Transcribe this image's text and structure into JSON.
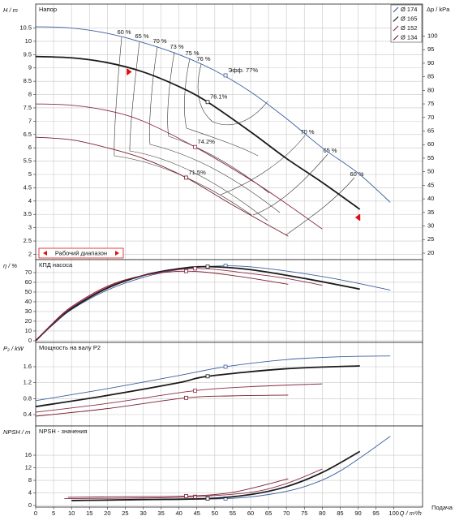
{
  "x_axis": {
    "label": "Q / m³/h",
    "caption": "Подача",
    "xlim": [
      0,
      108
    ],
    "xticks": [
      0,
      5,
      10,
      15,
      20,
      25,
      30,
      35,
      40,
      45,
      50,
      55,
      60,
      65,
      70,
      75,
      80,
      85,
      90,
      95,
      100
    ]
  },
  "chart_data": [
    {
      "type": "line",
      "title": "Напор",
      "ylabel": "H / m",
      "y2label": "Δp / kPa",
      "grid": true,
      "legend": "top-right",
      "ylim": [
        1.8,
        11.4
      ],
      "yticks": [
        2,
        2.5,
        3,
        3.5,
        4,
        4.5,
        5,
        5.5,
        6,
        6.5,
        7,
        7.5,
        8,
        8.5,
        9,
        9.5,
        10,
        10.5
      ],
      "y2lim": [
        17.6,
        111.8
      ],
      "y2ticks": [
        20,
        25,
        30,
        35,
        40,
        45,
        50,
        55,
        60,
        65,
        70,
        75,
        80,
        85,
        90,
        95,
        100
      ],
      "annotations": [
        "60 %",
        "65 %",
        "70 %",
        "73 %",
        "75 %",
        "76 %",
        "70 %",
        "65 %",
        "60 %"
      ],
      "operating_range_label": "Рабочий диапазон",
      "operating_range": [
        25.5,
        90.5
      ],
      "series": [
        {
          "name": "Ø 174",
          "color": "#3b5fa0",
          "x": [
            0,
            10,
            20,
            30,
            40,
            50,
            60,
            70,
            80,
            90,
            99
          ],
          "values": [
            10.55,
            10.5,
            10.3,
            9.95,
            9.5,
            8.9,
            8.1,
            7.1,
            6.0,
            5.05,
            3.95
          ],
          "point_x": 53,
          "point_y": 8.72,
          "point_label": "Эфф. 77%"
        },
        {
          "name": "Ø 165",
          "color": "#1a1a1a",
          "x": [
            0,
            10,
            20,
            30,
            40,
            48,
            60,
            70,
            80,
            90.5
          ],
          "values": [
            9.43,
            9.38,
            9.2,
            8.85,
            8.3,
            7.72,
            6.6,
            5.6,
            4.7,
            3.69
          ],
          "point_x": 48,
          "point_y": 7.72,
          "point_label": "76.1%"
        },
        {
          "name": "Ø 152",
          "color": "#8c2a4a",
          "x": [
            0,
            10,
            20,
            30,
            44.5,
            60,
            70,
            80
          ],
          "values": [
            7.65,
            7.6,
            7.4,
            7.0,
            6.03,
            4.8,
            3.9,
            2.95
          ],
          "point_x": 44.5,
          "point_y": 6.03,
          "point_label": "74.2%"
        },
        {
          "name": "Ø 134",
          "color": "#7a1f2e",
          "x": [
            0,
            10,
            20,
            30,
            42,
            55,
            70.5
          ],
          "values": [
            6.4,
            6.3,
            6.0,
            5.6,
            4.88,
            3.85,
            2.68
          ],
          "point_x": 42,
          "point_y": 4.88,
          "point_label": "71.5%"
        }
      ]
    },
    {
      "type": "line",
      "title": "КПД насоса",
      "ylabel": "η / %",
      "grid": true,
      "ylim": [
        -1.7,
        83.3
      ],
      "yticks": [
        0,
        10,
        20,
        30,
        40,
        50,
        60,
        70
      ],
      "series": [
        {
          "color": "#3b5fa0",
          "x": [
            0,
            5,
            10,
            20,
            30,
            40,
            53,
            65,
            80,
            90,
            99
          ],
          "values": [
            0,
            17,
            32,
            52,
            65,
            73,
            77,
            74,
            66,
            59,
            52
          ],
          "point_x": 53,
          "point_y": 77
        },
        {
          "color": "#1a1a1a",
          "x": [
            0,
            5,
            10,
            20,
            30,
            40,
            48,
            60,
            75,
            90.5
          ],
          "values": [
            0,
            18,
            33,
            54,
            67,
            74,
            76.1,
            73,
            64,
            53
          ],
          "point_x": 48,
          "point_y": 76.1
        },
        {
          "color": "#8c2a4a",
          "x": [
            0,
            5,
            10,
            20,
            30,
            44.5,
            60,
            70,
            80
          ],
          "values": [
            0,
            18,
            34,
            55,
            67,
            74.2,
            69,
            64,
            57
          ],
          "point_x": 44.5,
          "point_y": 74.2
        },
        {
          "color": "#7a1f2e",
          "x": [
            0,
            5,
            10,
            20,
            30,
            42,
            55,
            70.5
          ],
          "values": [
            0,
            19,
            35,
            56,
            67,
            71.5,
            67,
            58
          ],
          "point_x": 42,
          "point_y": 71.5
        }
      ]
    },
    {
      "type": "line",
      "title": "Мощность на валу P2",
      "ylabel": "P₂ / kW",
      "grid": true,
      "ylim": [
        0.115,
        2.21
      ],
      "yticks": [
        0.4,
        0.8,
        1.2,
        1.6
      ],
      "series": [
        {
          "color": "#3b5fa0",
          "x": [
            0,
            20,
            40,
            53,
            70,
            85,
            99
          ],
          "values": [
            0.75,
            1.05,
            1.38,
            1.6,
            1.78,
            1.85,
            1.87
          ],
          "point_x": 53,
          "point_y": 1.6
        },
        {
          "color": "#1a1a1a",
          "x": [
            0,
            20,
            40,
            48,
            70,
            90.5
          ],
          "values": [
            0.6,
            0.88,
            1.2,
            1.36,
            1.55,
            1.62
          ],
          "point_x": 48,
          "point_y": 1.36
        },
        {
          "color": "#8c2a4a",
          "x": [
            0,
            20,
            44.5,
            60,
            80
          ],
          "values": [
            0.46,
            0.68,
            1.0,
            1.1,
            1.17
          ],
          "point_x": 44.5,
          "point_y": 1.0
        },
        {
          "color": "#7a1f2e",
          "x": [
            0,
            20,
            42,
            55,
            70.5
          ],
          "values": [
            0.36,
            0.55,
            0.82,
            0.87,
            0.89
          ],
          "point_x": 42,
          "point_y": 0.82
        }
      ]
    },
    {
      "type": "line",
      "title": "NPSH - значения",
      "ylabel": "NPSH / m",
      "grid": true,
      "ylim": [
        -0.5,
        25.3
      ],
      "yticks": [
        0,
        4,
        8,
        12,
        16
      ],
      "series": [
        {
          "color": "#3b5fa0",
          "x": [
            10,
            30,
            53,
            65,
            75,
            85,
            99
          ],
          "values": [
            1.5,
            1.8,
            2.2,
            3.5,
            6,
            11,
            22
          ],
          "point_x": 53,
          "point_y": 2.2
        },
        {
          "color": "#1a1a1a",
          "x": [
            10,
            30,
            48,
            60,
            70,
            80,
            90.5
          ],
          "values": [
            1.6,
            1.9,
            2.2,
            3.5,
            6,
            10.5,
            17.2
          ],
          "point_x": 48,
          "point_y": 2.2
        },
        {
          "color": "#8c2a4a",
          "x": [
            8,
            30,
            44.5,
            60,
            70,
            80
          ],
          "values": [
            2.2,
            2.4,
            2.8,
            4.2,
            7,
            11.6
          ],
          "point_x": 44.5,
          "point_y": 2.8
        },
        {
          "color": "#7a1f2e",
          "x": [
            9,
            25,
            42,
            55,
            70.5
          ],
          "values": [
            2.6,
            2.8,
            3.0,
            4.2,
            8.5
          ],
          "point_x": 42,
          "point_y": 3.0
        }
      ]
    }
  ]
}
